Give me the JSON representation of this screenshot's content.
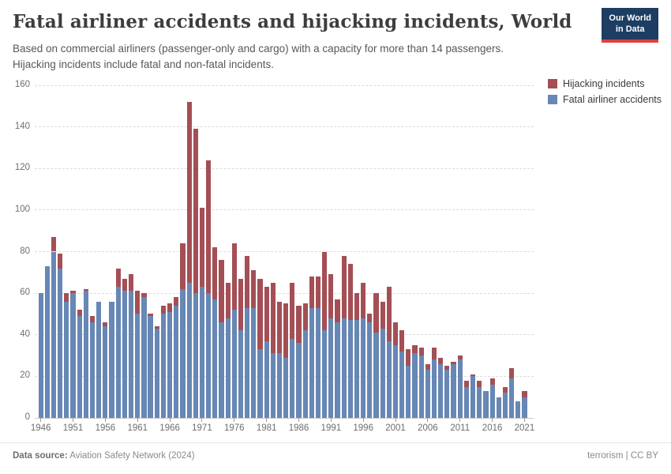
{
  "header": {
    "title": "Fatal airliner accidents and hijacking incidents, World",
    "subtitle_line1": "Based on commercial airliners (passenger-only and cargo) with a capacity for more than 14 passengers.",
    "subtitle_line2": "Hijacking incidents include fatal and non-fatal incidents."
  },
  "logo": {
    "line1": "Our World",
    "line2": "in Data"
  },
  "legend": [
    {
      "label": "Hijacking incidents",
      "color": "#a44f55"
    },
    {
      "label": "Fatal airliner accidents",
      "color": "#6787b5"
    }
  ],
  "chart_data": {
    "type": "bar",
    "stacked": true,
    "x_start_year": 1946,
    "x_end_year": 2021,
    "x": [
      1946,
      1947,
      1948,
      1949,
      1950,
      1951,
      1952,
      1953,
      1954,
      1955,
      1956,
      1957,
      1958,
      1959,
      1960,
      1961,
      1962,
      1963,
      1964,
      1965,
      1966,
      1967,
      1968,
      1969,
      1970,
      1971,
      1972,
      1973,
      1974,
      1975,
      1976,
      1977,
      1978,
      1979,
      1980,
      1981,
      1982,
      1983,
      1984,
      1985,
      1986,
      1987,
      1988,
      1989,
      1990,
      1991,
      1992,
      1993,
      1994,
      1995,
      1996,
      1997,
      1998,
      1999,
      2000,
      2001,
      2002,
      2003,
      2004,
      2005,
      2006,
      2007,
      2008,
      2009,
      2010,
      2011,
      2012,
      2013,
      2014,
      2015,
      2016,
      2017,
      2018,
      2019,
      2020,
      2021
    ],
    "series": [
      {
        "name": "Fatal airliner accidents",
        "color": "#6787b5",
        "values": [
          60,
          73,
          80,
          72,
          56,
          60,
          49,
          61,
          46,
          56,
          44,
          56,
          63,
          61,
          61,
          50,
          58,
          49,
          43,
          50,
          51,
          54,
          62,
          65,
          60,
          63,
          60,
          57,
          46,
          48,
          52,
          42,
          53,
          53,
          33,
          37,
          31,
          31,
          29,
          38,
          36,
          42,
          53,
          53,
          42,
          48,
          46,
          48,
          47,
          47,
          48,
          46,
          41,
          43,
          37,
          35,
          32,
          25,
          31,
          30,
          23,
          28,
          26,
          23,
          26,
          28,
          15,
          20,
          15,
          13,
          16,
          10,
          12,
          19,
          8,
          10
        ]
      },
      {
        "name": "Hijacking incidents",
        "color": "#a44f55",
        "values": [
          0,
          0,
          7,
          7,
          4,
          1,
          3,
          1,
          3,
          0,
          2,
          0,
          9,
          6,
          8,
          11,
          2,
          1,
          1,
          4,
          4,
          4,
          22,
          87,
          79,
          38,
          64,
          25,
          30,
          17,
          32,
          25,
          25,
          18,
          34,
          26,
          34,
          25,
          26,
          27,
          18,
          13,
          15,
          15,
          38,
          21,
          11,
          30,
          27,
          13,
          17,
          4,
          19,
          13,
          26,
          11,
          10,
          8,
          4,
          4,
          3,
          6,
          3,
          2,
          1,
          2,
          3,
          1,
          3,
          0,
          3,
          0,
          3,
          5,
          0,
          3
        ]
      }
    ],
    "x_ticks": [
      1946,
      1951,
      1956,
      1961,
      1966,
      1971,
      1976,
      1981,
      1986,
      1991,
      1996,
      2001,
      2006,
      2011,
      2016,
      2021
    ],
    "y_ticks": [
      0,
      20,
      40,
      60,
      80,
      100,
      120,
      140,
      160
    ],
    "ylim": [
      0,
      160
    ],
    "grid": "dashed-horizontal",
    "legend_position": "top-right",
    "title": "Fatal airliner accidents and hijacking incidents, World"
  },
  "footer": {
    "source_label": "Data source:",
    "source_value": " Aviation Safety Network (2024)",
    "right_text": "terrorism | CC BY"
  }
}
